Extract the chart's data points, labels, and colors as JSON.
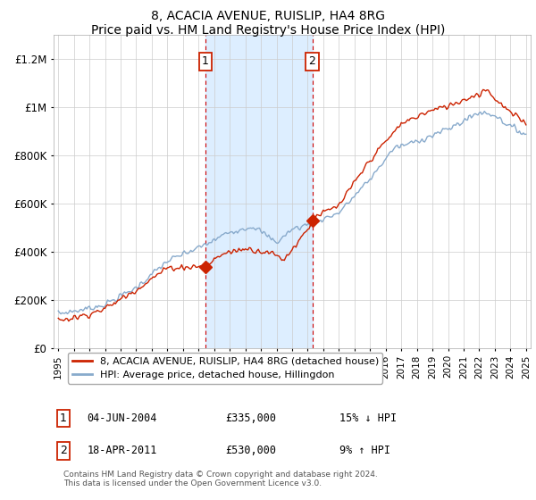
{
  "title": "8, ACACIA AVENUE, RUISLIP, HA4 8RG",
  "subtitle": "Price paid vs. HM Land Registry's House Price Index (HPI)",
  "ylabel_ticks": [
    "£0",
    "£200K",
    "£400K",
    "£600K",
    "£800K",
    "£1M",
    "£1.2M"
  ],
  "ylim": [
    0,
    1300000
  ],
  "xlim_start": 1994.7,
  "xlim_end": 2025.3,
  "sale1_x": 2004.42,
  "sale1_y": 335000,
  "sale1_label": "1",
  "sale2_x": 2011.29,
  "sale2_y": 530000,
  "sale2_label": "2",
  "shade_color": "#ddeeff",
  "vline_color": "#cc0000",
  "red_line_color": "#cc2200",
  "blue_line_color": "#88aacc",
  "legend_red": "8, ACACIA AVENUE, RUISLIP, HA4 8RG (detached house)",
  "legend_blue": "HPI: Average price, detached house, Hillingdon",
  "annot1_date": "04-JUN-2004",
  "annot1_price": "£335,000",
  "annot1_hpi": "15% ↓ HPI",
  "annot2_date": "18-APR-2011",
  "annot2_price": "£530,000",
  "annot2_hpi": "9% ↑ HPI",
  "footer": "Contains HM Land Registry data © Crown copyright and database right 2024.\nThis data is licensed under the Open Government Licence v3.0.",
  "background_color": "#ffffff",
  "grid_color": "#cccccc"
}
